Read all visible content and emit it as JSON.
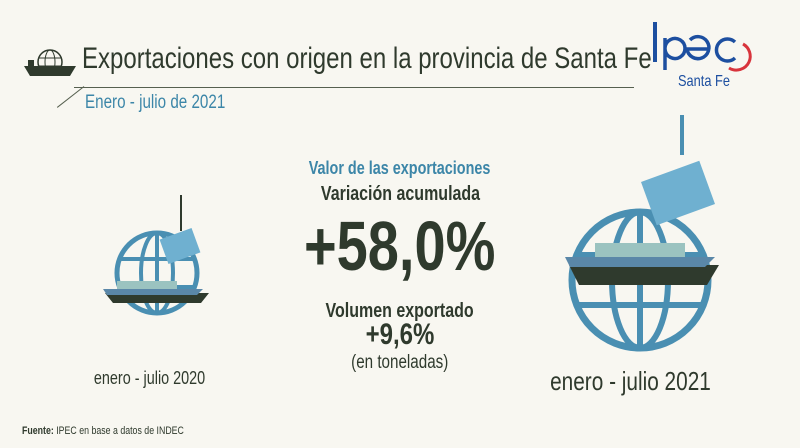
{
  "header": {
    "title": "Exportaciones con origen en la provincia de Santa Fe",
    "subtitle": "Enero - julio de 2021"
  },
  "logo": {
    "name": "Ipec",
    "subtitle": "Santa Fe"
  },
  "main": {
    "section_title": "Valor de las exportaciones",
    "variation_label": "Variación acumulada",
    "variation_value": "+58,0%",
    "volume_label": "Volumen exportado",
    "volume_value": "+9,6%",
    "volume_unit": "(en toneladas)"
  },
  "periods": {
    "previous": "enero - julio 2020",
    "current": "enero - julio 2021"
  },
  "footer": {
    "source_label": "Fuente:",
    "source_text": "IPEC en base a datos de INDEC"
  },
  "colors": {
    "dark": "#2f3a2d",
    "accent": "#3c86a8",
    "globe": "#4a8fb2",
    "logo_blue": "#1d4fa0",
    "logo_red": "#d8343c"
  }
}
